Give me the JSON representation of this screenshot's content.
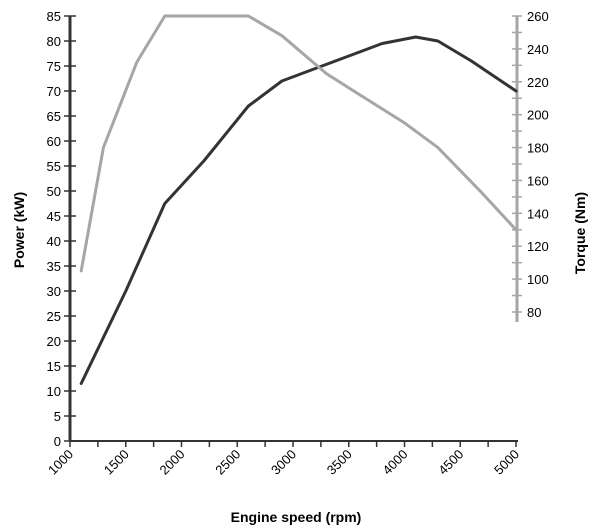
{
  "chart_data": {
    "type": "line",
    "title": "",
    "xlabel": "Engine speed (rpm)",
    "ylabel": "Power (kW)",
    "y2label": "Torque (Nm)",
    "xlim": [
      1000,
      5000
    ],
    "ylim": [
      0,
      85
    ],
    "y2lim": [
      80,
      260
    ],
    "x_ticks": [
      "1000",
      "1500",
      "2000",
      "2500",
      "3000",
      "3500",
      "4000",
      "4500",
      "5000"
    ],
    "y_ticks": [
      "0",
      "5",
      "10",
      "15",
      "20",
      "25",
      "30",
      "35",
      "40",
      "45",
      "50",
      "55",
      "60",
      "65",
      "70",
      "75",
      "80",
      "85"
    ],
    "y2_ticks": [
      "80",
      "100",
      "120",
      "140",
      "160",
      "180",
      "200",
      "220",
      "240",
      "260"
    ],
    "grid": false,
    "legend": "none",
    "colors": {
      "power": "#333333",
      "torque": "#a6a6a6",
      "left_axis": "#333333",
      "right_axis": "#a6a6a6"
    },
    "series": [
      {
        "key": "power",
        "axis": "left",
        "x": [
          1100,
          1500,
          1850,
          2200,
          2600,
          2900,
          3200,
          3500,
          3800,
          4100,
          4300,
          4600,
          5000
        ],
        "values": [
          11.5,
          30,
          47.5,
          56,
          67,
          72,
          74.5,
          77,
          79.5,
          80.8,
          80,
          76,
          70
        ]
      },
      {
        "key": "torque",
        "axis": "right",
        "x": [
          1100,
          1300,
          1600,
          1850,
          2600,
          2900,
          3300,
          3600,
          4000,
          4300,
          4700,
          5000
        ],
        "values": [
          105,
          180,
          232,
          260,
          260,
          248,
          225,
          212,
          195,
          180,
          152,
          130
        ]
      }
    ]
  }
}
